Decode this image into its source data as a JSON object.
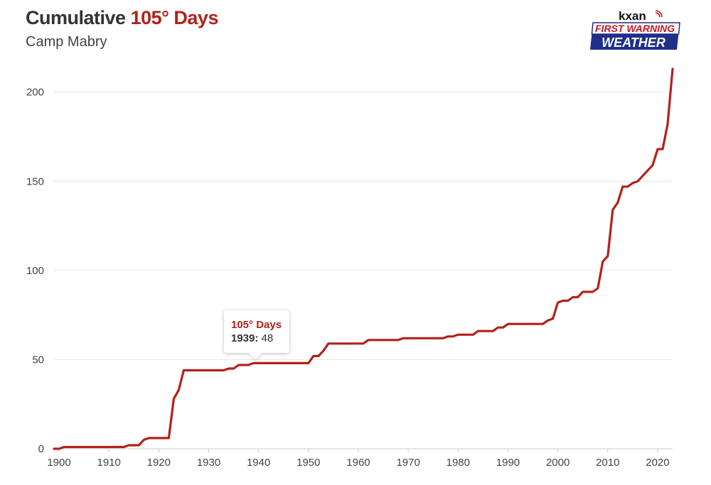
{
  "header": {
    "title_prefix": "Cumulative",
    "title_accent": "105° Days",
    "subtitle": "Camp Mabry"
  },
  "logo": {
    "brand": "kxan",
    "line1": "FIRST WARNING",
    "line2": "WEATHER"
  },
  "tooltip": {
    "series": "105° Days",
    "year_label": "1939:",
    "value": "48"
  },
  "colors": {
    "line": "#b3211b",
    "grid": "#e6e6e6",
    "logo_blue": "#1f2f8a",
    "logo_red": "#c8171e"
  },
  "chart_data": {
    "type": "line",
    "title": "Cumulative 105° Days",
    "subtitle": "Camp Mabry",
    "xlabel": "",
    "ylabel": "",
    "xlim": [
      1899,
      2023
    ],
    "ylim": [
      0,
      215
    ],
    "grid": true,
    "xticks": [
      1900,
      1910,
      1920,
      1930,
      1940,
      1950,
      1960,
      1970,
      1980,
      1990,
      2000,
      2010,
      2020
    ],
    "yticks": [
      0,
      50,
      100,
      150,
      200
    ],
    "series": [
      {
        "name": "105° Days",
        "x": [
          1899,
          1900,
          1901,
          1902,
          1913,
          1914,
          1916,
          1917,
          1918,
          1922,
          1923,
          1924,
          1925,
          1933,
          1934,
          1935,
          1936,
          1938,
          1939,
          1950,
          1951,
          1952,
          1953,
          1954,
          1961,
          1962,
          1968,
          1969,
          1977,
          1978,
          1979,
          1980,
          1983,
          1984,
          1987,
          1988,
          1989,
          1990,
          1997,
          1998,
          1999,
          2000,
          2001,
          2002,
          2003,
          2004,
          2005,
          2006,
          2007,
          2008,
          2009,
          2010,
          2011,
          2012,
          2013,
          2014,
          2015,
          2016,
          2017,
          2018,
          2019,
          2020,
          2021,
          2022,
          2023
        ],
        "values": [
          0,
          0,
          1,
          1,
          1,
          2,
          2,
          5,
          6,
          6,
          28,
          33,
          44,
          44,
          45,
          45,
          47,
          47,
          48,
          48,
          52,
          52,
          55,
          59,
          59,
          61,
          61,
          62,
          62,
          63,
          63,
          64,
          64,
          66,
          66,
          68,
          68,
          70,
          70,
          72,
          73,
          82,
          83,
          83,
          85,
          85,
          88,
          88,
          88,
          90,
          105,
          108,
          134,
          138,
          147,
          147,
          149,
          150,
          153,
          156,
          159,
          168,
          168,
          182,
          213
        ]
      }
    ],
    "highlight": {
      "x": 1939,
      "y": 48
    }
  }
}
